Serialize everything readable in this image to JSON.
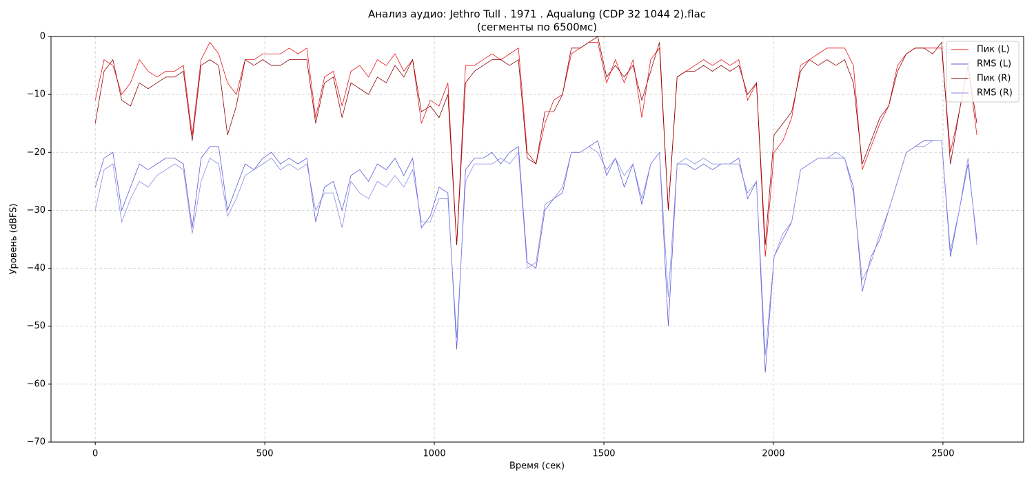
{
  "chart_data": {
    "type": "line",
    "title": "Анализ аудио: Jethro Tull . 1971 . Aqualung (CDP 32 1044 2).flac",
    "subtitle": "(сегменты по 6500мс)",
    "x_label": "Время (сек)",
    "y_label": "Уровень (dBFS)",
    "xlim": [
      -130.5,
      2738
    ],
    "ylim": [
      -70,
      0
    ],
    "xticks": [
      0,
      500,
      1000,
      1500,
      2000,
      2500
    ],
    "yticks": [
      0,
      {
        "value": -10,
        "label": "−10"
      },
      {
        "value": -20,
        "label": "−20"
      },
      {
        "value": -30,
        "label": "−30"
      },
      {
        "value": -40,
        "label": "−40"
      },
      {
        "value": -50,
        "label": "−50"
      },
      {
        "value": -60,
        "label": "−60"
      },
      {
        "value": -70,
        "label": "−70"
      }
    ],
    "grid": true,
    "legend": "upper right",
    "x": [
      0,
      26,
      52,
      78,
      104,
      130,
      156,
      182,
      208,
      234,
      260,
      286,
      312,
      338,
      364,
      390,
      416,
      442,
      468,
      494,
      520,
      546,
      572,
      598,
      624,
      650,
      676,
      702,
      728,
      754,
      780,
      806,
      832,
      858,
      884,
      910,
      936,
      962,
      988,
      1014,
      1040,
      1066,
      1092,
      1118,
      1144,
      1170,
      1196,
      1222,
      1248,
      1274,
      1300,
      1326,
      1352,
      1378,
      1404,
      1430,
      1456,
      1482,
      1508,
      1534,
      1560,
      1586,
      1612,
      1638,
      1664,
      1690,
      1716,
      1742,
      1768,
      1794,
      1820,
      1846,
      1872,
      1898,
      1924,
      1950,
      1976,
      2002,
      2028,
      2054,
      2080,
      2106,
      2132,
      2158,
      2184,
      2210,
      2236,
      2262,
      2288,
      2314,
      2340,
      2366,
      2392,
      2418,
      2444,
      2470,
      2496,
      2522,
      2548,
      2574,
      2600
    ],
    "series": [
      {
        "name": "Пик (L)",
        "color": "#e8141a",
        "values": [
          -11,
          -4,
          -5,
          -10,
          -8,
          -4,
          -6,
          -7,
          -6,
          -6,
          -5,
          -17,
          -4,
          -1,
          -3,
          -8,
          -10,
          -4,
          -4,
          -3,
          -3,
          -3,
          -2,
          -3,
          -2,
          -14,
          -7,
          -6,
          -12,
          -6,
          -5,
          -7,
          -4,
          -5,
          -3,
          -6,
          -4,
          -15,
          -11,
          -12,
          -8,
          -36,
          -5,
          -5,
          -4,
          -3,
          -4,
          -3,
          -2,
          -20,
          -22,
          -15,
          -11,
          -10,
          -3,
          -2,
          -1,
          -1,
          -8,
          -4,
          -8,
          -4,
          -14,
          -4,
          -2,
          -30,
          -7,
          -6,
          -5,
          -4,
          -5,
          -4,
          -5,
          -4,
          -11,
          -8,
          -38,
          -20,
          -18,
          -14,
          -5,
          -4,
          -3,
          -2,
          -2,
          -2,
          -5,
          -23,
          -19,
          -15,
          -12,
          -5,
          -3,
          -2,
          -2,
          -2,
          -2,
          -20,
          -13,
          -5,
          -17
        ]
      },
      {
        "name": "RMS (L)",
        "color": "#5a5ad6",
        "values": [
          -26,
          -21,
          -20,
          -30,
          -26,
          -22,
          -23,
          -22,
          -21,
          -21,
          -22,
          -33,
          -21,
          -19,
          -19,
          -30,
          -26,
          -22,
          -23,
          -21,
          -20,
          -22,
          -21,
          -22,
          -21,
          -32,
          -26,
          -25,
          -30,
          -24,
          -23,
          -25,
          -22,
          -23,
          -21,
          -24,
          -21,
          -33,
          -31,
          -26,
          -27,
          -54,
          -23,
          -21,
          -21,
          -20,
          -22,
          -20,
          -19,
          -39,
          -40,
          -30,
          -28,
          -27,
          -20,
          -20,
          -19,
          -18,
          -24,
          -21,
          -26,
          -22,
          -29,
          -22,
          -20,
          -50,
          -22,
          -22,
          -23,
          -22,
          -23,
          -22,
          -22,
          -21,
          -28,
          -25,
          -58,
          -38,
          -35,
          -32,
          -23,
          -22,
          -21,
          -21,
          -21,
          -21,
          -26,
          -44,
          -38,
          -35,
          -30,
          -25,
          -20,
          -19,
          -18,
          -18,
          -18,
          -38,
          -30,
          -22,
          -35
        ]
      },
      {
        "name": "Пик (R)",
        "color": "#8b0000",
        "values": [
          -15,
          -6,
          -4,
          -11,
          -12,
          -8,
          -9,
          -8,
          -7,
          -7,
          -6,
          -18,
          -5,
          -4,
          -5,
          -17,
          -12,
          -4,
          -5,
          -4,
          -5,
          -5,
          -4,
          -4,
          -4,
          -15,
          -8,
          -7,
          -14,
          -8,
          -9,
          -10,
          -7,
          -8,
          -5,
          -7,
          -4,
          -13,
          -12,
          -14,
          -10,
          -36,
          -8,
          -6,
          -5,
          -4,
          -4,
          -5,
          -4,
          -21,
          -22,
          -13,
          -13,
          -10,
          -2,
          -2,
          -1,
          0,
          -7,
          -5,
          -7,
          -5,
          -11,
          -6,
          -1,
          -30,
          -7,
          -6,
          -6,
          -5,
          -6,
          -5,
          -6,
          -5,
          -10,
          -8,
          -36,
          -17,
          -15,
          -13,
          -6,
          -4,
          -5,
          -4,
          -5,
          -4,
          -8,
          -22,
          -18,
          -14,
          -12,
          -6,
          -3,
          -2,
          -2,
          -3,
          -1,
          -22,
          -13,
          -5,
          -15
        ]
      },
      {
        "name": "RMS (R)",
        "color": "#8a8ae6",
        "values": [
          -30,
          -23,
          -22,
          -32,
          -28,
          -25,
          -26,
          -24,
          -23,
          -22,
          -23,
          -34,
          -25,
          -21,
          -22,
          -31,
          -28,
          -24,
          -23,
          -22,
          -21,
          -23,
          -22,
          -23,
          -22,
          -30,
          -27,
          -27,
          -33,
          -25,
          -27,
          -28,
          -25,
          -26,
          -24,
          -26,
          -23,
          -32,
          -32,
          -28,
          -28,
          -52,
          -25,
          -22,
          -22,
          -22,
          -21,
          -22,
          -20,
          -40,
          -39,
          -29,
          -28,
          -26,
          -20,
          -20,
          -19,
          -20,
          -23,
          -21,
          -24,
          -22,
          -28,
          -22,
          -20,
          -45,
          -22,
          -21,
          -22,
          -21,
          -22,
          -22,
          -22,
          -22,
          -27,
          -25,
          -55,
          -38,
          -34,
          -32,
          -23,
          -22,
          -21,
          -21,
          -20,
          -21,
          -27,
          -42,
          -39,
          -34,
          -30,
          -25,
          -20,
          -19,
          -19,
          -18,
          -18,
          -37,
          -30,
          -21,
          -36
        ]
      }
    ]
  }
}
